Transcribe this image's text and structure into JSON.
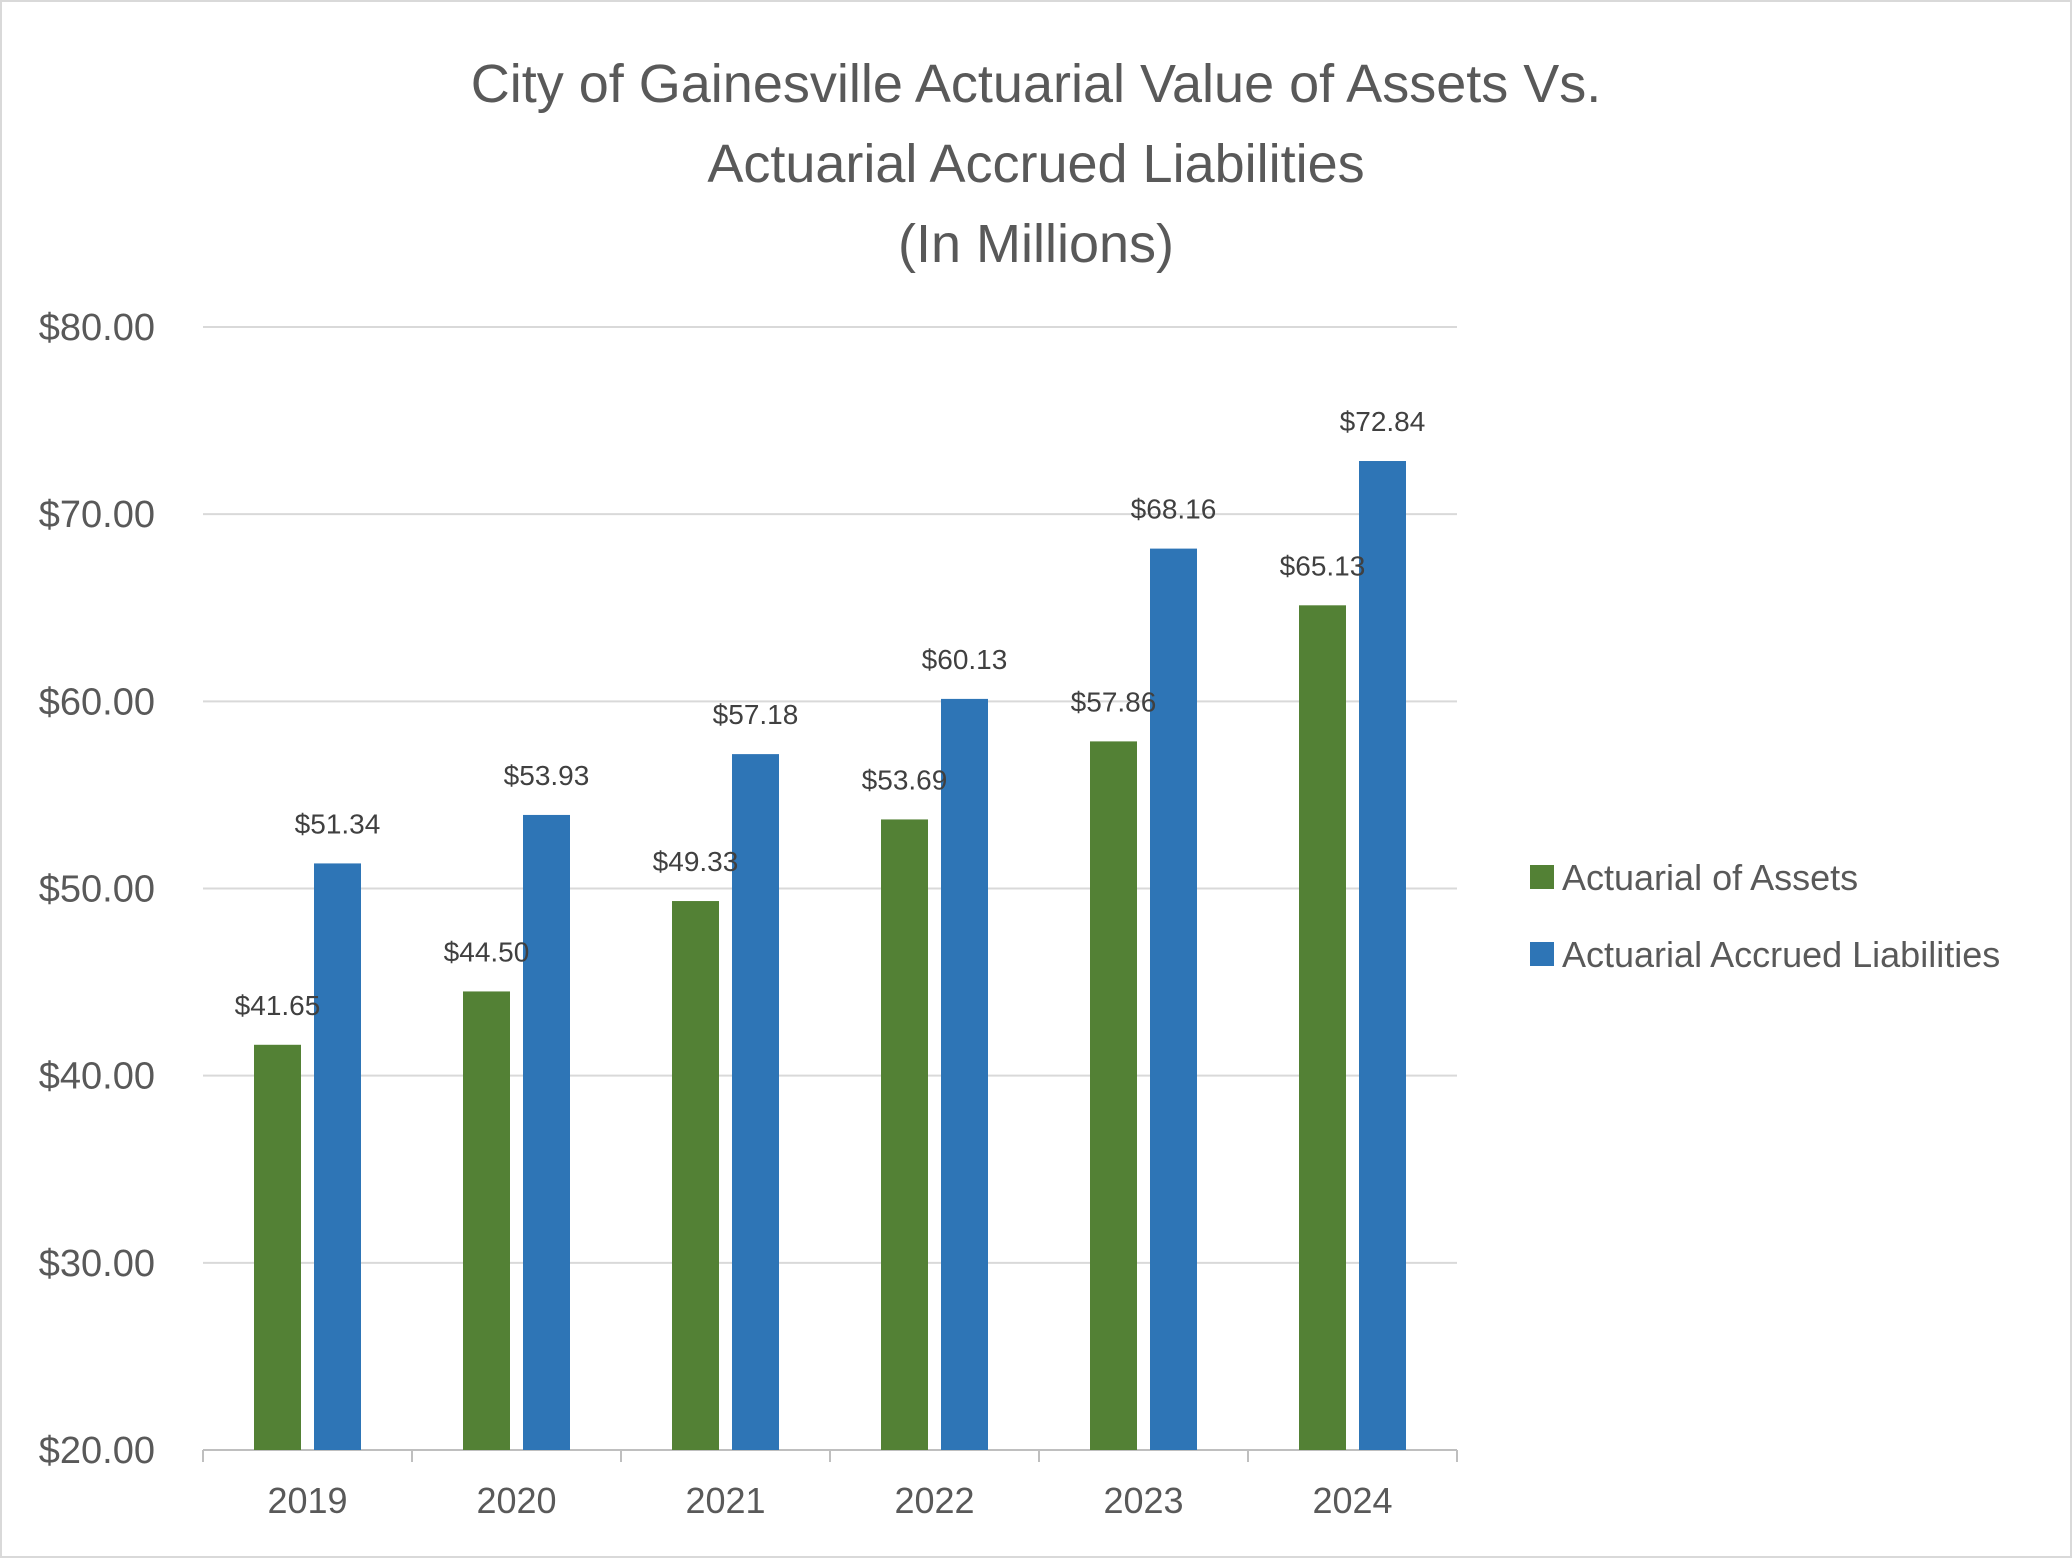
{
  "chart_data": {
    "type": "bar",
    "title": "City of Gainesville Actuarial Value of Assets Vs. Actuarial Accrued Liabilities (In Millions)",
    "title_lines": [
      "City of Gainesville Actuarial Value of Assets Vs.",
      "Actuarial Accrued Liabilities",
      "(In Millions)"
    ],
    "categories": [
      "2019",
      "2020",
      "2021",
      "2022",
      "2023",
      "2024"
    ],
    "series": [
      {
        "name": "Actuarial of Assets",
        "color": "#538135",
        "values": [
          41.65,
          44.5,
          49.33,
          53.69,
          57.86,
          65.13
        ],
        "labels": [
          "$41.65",
          "$44.50",
          "$49.33",
          "$53.69",
          "$57.86",
          "$65.13"
        ]
      },
      {
        "name": "Actuarial Accrued Liabilities",
        "color": "#2e75b6",
        "values": [
          51.34,
          53.93,
          57.18,
          60.13,
          68.16,
          72.84
        ],
        "labels": [
          "$51.34",
          "$53.93",
          "$57.18",
          "$60.13",
          "$68.16",
          "$72.84"
        ]
      }
    ],
    "ylim": [
      20,
      80
    ],
    "yticks": [
      20,
      30,
      40,
      50,
      60,
      70,
      80
    ],
    "ytick_labels": [
      "$20.00",
      "$30.00",
      "$40.00",
      "$50.00",
      "$60.00",
      "$70.00",
      "$80.00"
    ],
    "xlabel": "",
    "ylabel": "",
    "grid": true,
    "legend_position": "right",
    "colors": {
      "gridline": "#d9d9d9",
      "axis": "#bfbfbf",
      "text": "#595959"
    }
  }
}
